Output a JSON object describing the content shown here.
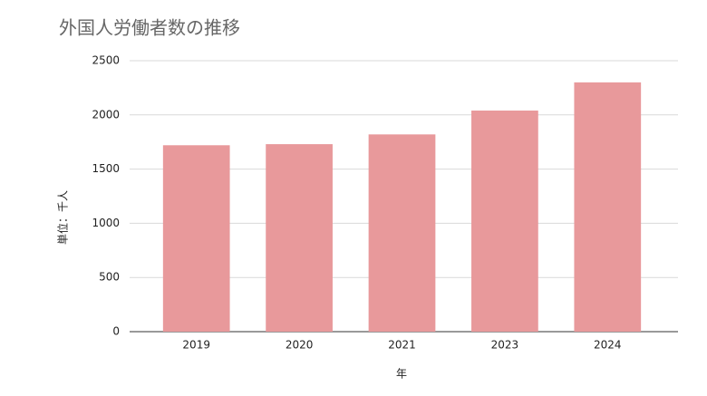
{
  "chart_data": {
    "type": "bar",
    "title": "外国人労働者数の推移",
    "x_label": "年",
    "y_label": "単位：千人",
    "categories": [
      "2019",
      "2020",
      "2021",
      "2023",
      "2024"
    ],
    "values": [
      1720,
      1730,
      1820,
      2040,
      2300
    ],
    "color": "#e8999b",
    "ylim": [
      0,
      2500
    ],
    "yticks": [
      0,
      500,
      1000,
      1500,
      2000,
      2500
    ],
    "grid": true
  }
}
